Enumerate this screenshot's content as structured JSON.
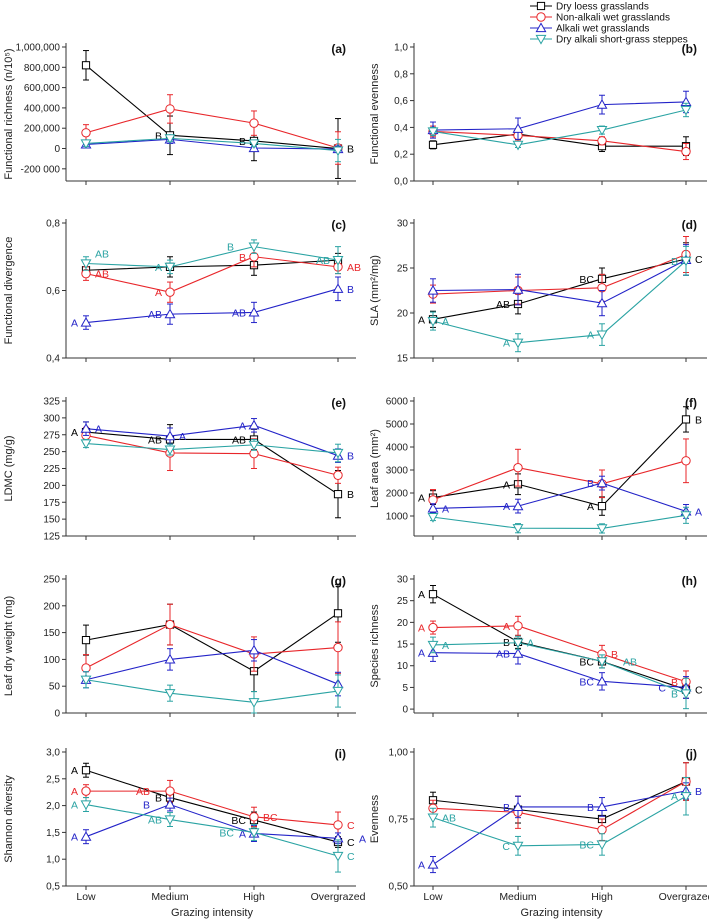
{
  "chart_data": {
    "type": "line",
    "legend": {
      "placement": "top-right",
      "entries": [
        "Dry loess grasslands",
        "Non-alkali wet grasslands",
        "Alkali wet grasslands",
        "Dry alkali short-grass steppes"
      ]
    },
    "series_styles": [
      {
        "name": "Dry loess grasslands",
        "color": "#000000",
        "marker": "square"
      },
      {
        "name": "Non-alkali wet grasslands",
        "color": "#e8262a",
        "marker": "circle"
      },
      {
        "name": "Alkali wet grasslands",
        "color": "#2323c8",
        "marker": "triangle-up"
      },
      {
        "name": "Dry alkali short-grass steppes",
        "color": "#2aa3a3",
        "marker": "triangle-down"
      }
    ],
    "categories": [
      "Low",
      "Medium",
      "High",
      "Overgrazed"
    ],
    "xlabel": "Grazing intensity",
    "panels": [
      {
        "tag": "(a)",
        "ylabel": "Functional richness (n/10⁵)",
        "ylim": [
          -320000,
          1000000
        ],
        "yticks": [
          -200000,
          0,
          200000,
          400000,
          600000,
          800000,
          1000000
        ],
        "yticklabels": [
          "-200 000",
          "0",
          "200,000",
          "400,000",
          "600,000",
          "800,000",
          "1,000,000"
        ],
        "series": [
          {
            "values": [
              820000,
              130000,
              75000,
              0
            ],
            "errors": [
              145000,
              190000,
              195000,
              295000
            ],
            "letters": [
              "",
              "B",
              "B",
              "B"
            ]
          },
          {
            "values": [
              155000,
              390000,
              250000,
              5000
            ],
            "errors": [
              80000,
              140000,
              120000,
              160000
            ],
            "letters": [
              "",
              "",
              "",
              ""
            ]
          },
          {
            "values": [
              40000,
              90000,
              5000,
              -5000
            ],
            "errors": [
              30000,
              40000,
              20000,
              30000
            ],
            "letters": [
              "",
              "",
              "",
              ""
            ]
          },
          {
            "values": [
              50000,
              100000,
              50000,
              -20000
            ],
            "errors": [
              30000,
              30000,
              30000,
              110000
            ],
            "letters": [
              "",
              "",
              "",
              ""
            ]
          }
        ]
      },
      {
        "tag": "(b)",
        "ylabel": "Functional evenness",
        "ylim": [
          0,
          1
        ],
        "yticks": [
          0,
          0.2,
          0.4,
          0.6,
          0.8,
          1.0
        ],
        "yticklabels": [
          "0,0",
          "0,2",
          "0,4",
          "0,6",
          "0,8",
          "1,0"
        ],
        "series": [
          {
            "values": [
              0.27,
              0.35,
              0.26,
              0.26
            ],
            "errors": [
              0.03,
              0.04,
              0.04,
              0.07
            ],
            "letters": [
              "",
              "",
              "",
              ""
            ]
          },
          {
            "values": [
              0.37,
              0.34,
              0.3,
              0.22
            ],
            "errors": [
              0.04,
              0.04,
              0.03,
              0.06
            ],
            "letters": [
              "",
              "",
              "",
              ""
            ]
          },
          {
            "values": [
              0.38,
              0.39,
              0.57,
              0.59
            ],
            "errors": [
              0.06,
              0.08,
              0.07,
              0.08
            ],
            "letters": [
              "",
              "",
              "",
              ""
            ]
          },
          {
            "values": [
              0.37,
              0.27,
              0.38,
              0.53
            ],
            "errors": [
              0.03,
              0.02,
              0.03,
              0.05
            ],
            "letters": [
              "",
              "",
              "",
              ""
            ]
          }
        ]
      },
      {
        "tag": "(c)",
        "ylabel": "Functional divergence",
        "ylim": [
          0.4,
          0.8
        ],
        "yticks": [
          0.4,
          0.6,
          0.8
        ],
        "yticklabels": [
          "0,4",
          "0,6",
          "0,8"
        ],
        "series": [
          {
            "values": [
              0.66,
              0.67,
              0.675,
              0.69
            ],
            "errors": [
              0.02,
              0.03,
              0.03,
              0.02
            ],
            "letters": [
              "",
              "",
              "",
              ""
            ]
          },
          {
            "values": [
              0.65,
              0.595,
              0.7,
              0.67
            ],
            "errors": [
              0.02,
              0.03,
              0.03,
              0.02
            ],
            "letters": [
              "AB",
              "A",
              "B",
              "AB"
            ]
          },
          {
            "values": [
              0.505,
              0.53,
              0.535,
              0.605
            ],
            "errors": [
              0.02,
              0.03,
              0.03,
              0.035
            ],
            "letters": [
              "A",
              "AB",
              "AB",
              "B"
            ]
          },
          {
            "values": [
              0.68,
              0.67,
              0.73,
              0.69
            ],
            "errors": [
              0.02,
              0.02,
              0.02,
              0.04
            ],
            "letters": [
              "AB",
              "A",
              "B",
              "AB"
            ]
          }
        ]
      },
      {
        "tag": "(d)",
        "ylabel": "SLA (mm²/mg)",
        "ylim": [
          15,
          30
        ],
        "yticks": [
          15,
          20,
          25,
          30
        ],
        "yticklabels": [
          "15",
          "20",
          "25",
          "30"
        ],
        "series": [
          {
            "values": [
              19.3,
              21.0,
              23.8,
              26.0
            ],
            "errors": [
              0.9,
              1.1,
              1.2,
              1.8
            ],
            "letters": [
              "A",
              "AB",
              "BC",
              "C"
            ]
          },
          {
            "values": [
              22.1,
              22.5,
              22.8,
              26.5
            ],
            "errors": [
              1.0,
              1.5,
              1.5,
              2.0
            ],
            "letters": [
              "",
              "",
              "",
              ""
            ]
          },
          {
            "values": [
              22.5,
              22.6,
              21.1,
              25.9
            ],
            "errors": [
              1.3,
              1.7,
              1.4,
              1.7
            ],
            "letters": [
              "",
              "",
              "",
              ""
            ]
          },
          {
            "values": [
              19.1,
              16.7,
              17.6,
              25.8
            ],
            "errors": [
              1.0,
              1.0,
              1.2,
              1.6
            ],
            "letters": [
              "A",
              "A",
              "A",
              "B"
            ]
          }
        ]
      },
      {
        "tag": "(e)",
        "ylabel": "LDMC (mg/g)",
        "ylim": [
          125,
          325
        ],
        "yticks": [
          125,
          150,
          175,
          200,
          225,
          250,
          275,
          300,
          325
        ],
        "yticklabels": [
          "125",
          "150",
          "175",
          "200",
          "225",
          "250",
          "275",
          "300",
          "325"
        ],
        "series": [
          {
            "values": [
              279,
              268,
              268,
              187
            ],
            "errors": [
              15,
              22,
              15,
              35
            ],
            "letters": [
              "A",
              "AB",
              "AB",
              "B"
            ]
          },
          {
            "values": [
              274,
              248,
              247,
              215
            ],
            "errors": [
              12,
              26,
              22,
              12
            ],
            "letters": [
              "",
              "",
              "",
              ""
            ]
          },
          {
            "values": [
              284,
              273,
              289,
              244
            ],
            "errors": [
              10,
              12,
              10,
              10
            ],
            "letters": [
              "A",
              "A",
              "A",
              "B"
            ]
          },
          {
            "values": [
              262,
              253,
              260,
              248
            ],
            "errors": [
              6,
              8,
              8,
              13
            ],
            "letters": [
              "",
              "",
              "",
              ""
            ]
          }
        ]
      },
      {
        "tag": "(f)",
        "ylabel": "Leaf area (mm²)",
        "ylim": [
          130,
          6000
        ],
        "yticks": [
          1000,
          2000,
          3000,
          4000,
          5000,
          6000
        ],
        "yticklabels": [
          "1000",
          "2000",
          "3000",
          "4000",
          "5000",
          "6000"
        ],
        "series": [
          {
            "values": [
              1800,
              2380,
              1430,
              5200
            ],
            "errors": [
              300,
              450,
              400,
              550
            ],
            "letters": [
              "A",
              "A",
              "A",
              "B"
            ]
          },
          {
            "values": [
              1700,
              3100,
              2400,
              3400
            ],
            "errors": [
              450,
              800,
              600,
              950
            ],
            "letters": [
              "",
              "",
              "",
              ""
            ]
          },
          {
            "values": [
              1330,
              1430,
              2430,
              1200
            ],
            "errors": [
              200,
              300,
              300,
              300
            ],
            "letters": [
              "A",
              "A",
              "B",
              "A"
            ]
          },
          {
            "values": [
              950,
              470,
              460,
              1030
            ],
            "errors": [
              150,
              200,
              200,
              350
            ],
            "letters": [
              "",
              "",
              "",
              ""
            ]
          }
        ]
      },
      {
        "tag": "(g)",
        "ylabel": "Leaf dry weight  (mg)",
        "ylim": [
          0,
          250
        ],
        "yticks": [
          0,
          50,
          100,
          150,
          200,
          250
        ],
        "yticklabels": [
          "0",
          "50",
          "100",
          "150",
          "200",
          "250"
        ],
        "series": [
          {
            "values": [
              136,
              165,
              78,
              186
            ],
            "errors": [
              28,
              38,
              38,
              54
            ],
            "letters": [
              "",
              "",
              "",
              ""
            ]
          },
          {
            "values": [
              84,
              165,
              110,
              122
            ],
            "errors": [
              25,
              38,
              32,
              48
            ],
            "letters": [
              "",
              "",
              "",
              ""
            ]
          },
          {
            "values": [
              62,
              100,
              117,
              54
            ],
            "errors": [
              15,
              20,
              20,
              22
            ],
            "letters": [
              "",
              "",
              "",
              ""
            ]
          },
          {
            "values": [
              62,
              37,
              20,
              41
            ],
            "errors": [
              15,
              15,
              20,
              30
            ],
            "letters": [
              "",
              "",
              "",
              ""
            ]
          }
        ]
      },
      {
        "tag": "(h)",
        "ylabel": "Species richness",
        "ylim": [
          -0.9,
          30
        ],
        "yticks": [
          0,
          5,
          10,
          15,
          20,
          25,
          30
        ],
        "yticklabels": [
          "0",
          "5",
          "10",
          "15",
          "20",
          "25",
          "30"
        ],
        "series": [
          {
            "values": [
              26.5,
              15.5,
              11.0,
              4.5
            ],
            "errors": [
              2.0,
              1.5,
              1.5,
              2.0
            ],
            "letters": [
              "A",
              "B",
              "BC",
              "C"
            ]
          },
          {
            "values": [
              18.8,
              19.2,
              12.7,
              6.3
            ],
            "errors": [
              1.5,
              2.2,
              2.0,
              2.5
            ],
            "letters": [
              "A",
              "A",
              "B",
              "B"
            ]
          },
          {
            "values": [
              13.0,
              12.8,
              6.4,
              5.0
            ],
            "errors": [
              2.0,
              2.4,
              2.0,
              2.5
            ],
            "letters": [
              "A",
              "AB",
              "BC",
              "C"
            ]
          },
          {
            "values": [
              14.8,
              15.3,
              11.0,
              3.6
            ],
            "errors": [
              1.8,
              1.5,
              1.5,
              3.5
            ],
            "letters": [
              "A",
              "A",
              "AB",
              "B"
            ]
          }
        ]
      },
      {
        "tag": "(i)",
        "ylabel": "Shannon diversity",
        "ylim": [
          0.5,
          3.0
        ],
        "yticks": [
          0.5,
          1.0,
          1.5,
          2.0,
          2.5,
          3.0
        ],
        "yticklabels": [
          "0,5",
          "1,0",
          "1,5",
          "2,0",
          "2,5",
          "3,0"
        ],
        "series": [
          {
            "values": [
              2.66,
              2.15,
              1.73,
              1.32
            ],
            "errors": [
              0.13,
              0.1,
              0.15,
              0.1
            ],
            "letters": [
              "A",
              "B",
              "BC",
              "C"
            ]
          },
          {
            "values": [
              2.27,
              2.27,
              1.79,
              1.64
            ],
            "errors": [
              0.12,
              0.2,
              0.18,
              0.24
            ],
            "letters": [
              "A",
              "AB",
              "BC",
              "C"
            ]
          },
          {
            "values": [
              1.42,
              2.02,
              1.48,
              1.39
            ],
            "errors": [
              0.13,
              0.12,
              0.15,
              0.1
            ],
            "letters": [
              "A",
              "B",
              "A",
              "A"
            ]
          },
          {
            "values": [
              2.02,
              1.74,
              1.5,
              1.06
            ],
            "errors": [
              0.13,
              0.13,
              0.15,
              0.3
            ],
            "letters": [
              "A",
              "AB",
              "BC",
              "C"
            ]
          }
        ]
      },
      {
        "tag": "(j)",
        "ylabel": "Evenness",
        "ylim": [
          0.5,
          1.0
        ],
        "yticks": [
          0.5,
          0.75,
          1.0
        ],
        "yticklabels": [
          "0,50",
          "0,75",
          "1,00"
        ],
        "series": [
          {
            "values": [
              0.82,
              0.785,
              0.75,
              0.89
            ],
            "errors": [
              0.03,
              0.05,
              0.04,
              0.07
            ],
            "letters": [
              "",
              "",
              "",
              ""
            ]
          },
          {
            "values": [
              0.79,
              0.775,
              0.71,
              0.89
            ],
            "errors": [
              0.03,
              0.06,
              0.04,
              0.07
            ],
            "letters": [
              "",
              "",
              "",
              ""
            ]
          },
          {
            "values": [
              0.58,
              0.795,
              0.795,
              0.855
            ],
            "errors": [
              0.03,
              0.04,
              0.035,
              0.03
            ],
            "letters": [
              "A",
              "B",
              "B",
              "B"
            ]
          },
          {
            "values": [
              0.755,
              0.65,
              0.655,
              0.835
            ],
            "errors": [
              0.035,
              0.035,
              0.04,
              0.07
            ],
            "letters": [
              "AB",
              "C",
              "BC",
              "A"
            ]
          }
        ]
      }
    ]
  }
}
